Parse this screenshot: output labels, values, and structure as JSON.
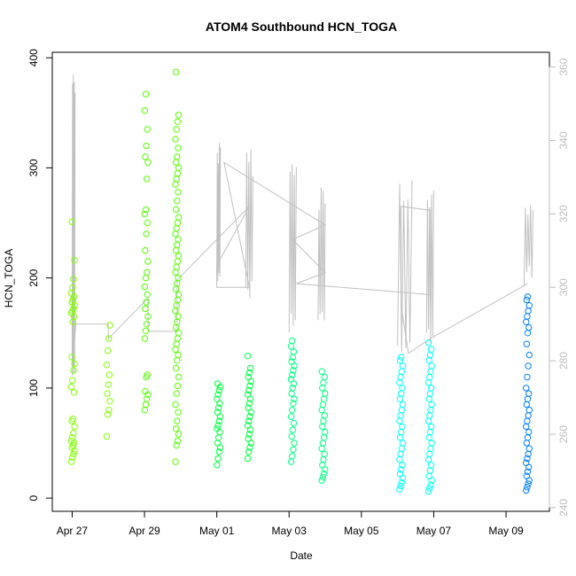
{
  "chart_data": {
    "type": "scatter",
    "title": "ATOM4 Southbound HCN_TOGA",
    "xlabel": "Date",
    "ylabel": "HCN_TOGA",
    "x_ticks": [
      "Apr 27",
      "Apr 29",
      "May 01",
      "May 03",
      "May 05",
      "May 07",
      "May 09"
    ],
    "y_ticks": [
      "0",
      "100",
      "200",
      "300",
      "400"
    ],
    "y2_ticks": [
      "240",
      "260",
      "280",
      "300",
      "320",
      "340",
      "360"
    ],
    "xlim": [
      "2018-04-26.45",
      "2018-05-10.2"
    ],
    "ylim": [
      -12,
      405
    ],
    "y2lim": [
      239,
      364
    ],
    "secondary_axis_color": "#bdbdbd",
    "line_color": "#c0c0c0",
    "grid": false,
    "series": [
      {
        "color": "#80ff00",
        "clusters": [
          {
            "date": "2018-04-27.02",
            "values": [
              33,
              37,
              40,
              43,
              46,
              48,
              50,
              52,
              55,
              59,
              65,
              70,
              72,
              96,
              101,
              107,
              116,
              122,
              128,
              160,
              165,
              168,
              170,
              172,
              175,
              178,
              180,
              183,
              186,
              191,
              199,
              216,
              251
            ]
          },
          {
            "date": "2018-04-28.0",
            "values": [
              56,
              76,
              80,
              88,
              95,
              103,
              112,
              121,
              134,
              145,
              157
            ]
          }
        ]
      },
      {
        "color": "#55ff00",
        "clusters": [
          {
            "date": "2018-04-29.05",
            "values": [
              80,
              85,
              90,
              94,
              97,
              110,
              112,
              145,
              152,
              158,
              165,
              172,
              178,
              185,
              192,
              200,
              205,
              215,
              225,
              240,
              250,
              258,
              262,
              290,
              305,
              310,
              320,
              335,
              352,
              367
            ]
          },
          {
            "date": "2018-04-29.9",
            "values": [
              33,
              48,
              52,
              58,
              63,
              70,
              78,
              85,
              95,
              102,
              110,
              118,
              125,
              130,
              135,
              140,
              145,
              150,
              155,
              160,
              165,
              170,
              175,
              180,
              185,
              190,
              195,
              200,
              205,
              210,
              215,
              220,
              225,
              230,
              235,
              240,
              245,
              250,
              255,
              262,
              270,
              278,
              285,
              290,
              295,
              300,
              305,
              310,
              318,
              326,
              335,
              342,
              348,
              387
            ]
          }
        ]
      },
      {
        "color": "#00ff40",
        "clusters": [
          {
            "date": "2018-05-01.05",
            "values": [
              30,
              36,
              42,
              46,
              50,
              55,
              60,
              63,
              66,
              70,
              74,
              78,
              82,
              86,
              90,
              94,
              98,
              101,
              104
            ]
          },
          {
            "date": "2018-05-01.9",
            "values": [
              36,
              42,
              46,
              50,
              54,
              58,
              62,
              66,
              70,
              74,
              78,
              82,
              86,
              90,
              94,
              98,
              102,
              106,
              110,
              114,
              118,
              129
            ]
          }
        ]
      },
      {
        "color": "#00ff80",
        "clusters": [
          {
            "date": "2018-05-03.1",
            "values": [
              33,
              38,
              44,
              50,
              56,
              62,
              68,
              74,
              80,
              86,
              90,
              95,
              100,
              104,
              108,
              112,
              116,
              120,
              124,
              128,
              133,
              138,
              143
            ]
          },
          {
            "date": "2018-05-03.95",
            "values": [
              16,
              19,
              22,
              26,
              30,
              35,
              40,
              45,
              50,
              55,
              60,
              65,
              70,
              75,
              80,
              85,
              90,
              95,
              100,
              105,
              110,
              115
            ]
          }
        ]
      },
      {
        "color": "#00ffff",
        "clusters": [
          {
            "date": "2018-05-06.1",
            "values": [
              8,
              11,
              14,
              18,
              22,
              26,
              30,
              35,
              40,
              45,
              50,
              55,
              60,
              65,
              70,
              75,
              80,
              85,
              90,
              95,
              100,
              105,
              110,
              115,
              120,
              125,
              128
            ]
          },
          {
            "date": "2018-05-06.9",
            "values": [
              6,
              9,
              12,
              16,
              20,
              25,
              30,
              35,
              40,
              45,
              50,
              55,
              60,
              65,
              70,
              75,
              80,
              85,
              90,
              95,
              100,
              105,
              110,
              115,
              120,
              125,
              130,
              135,
              141
            ]
          }
        ]
      },
      {
        "color": "#0080ff",
        "clusters": [
          {
            "date": "2018-05-09.6",
            "values": [
              7,
              10,
              13,
              16,
              20,
              24,
              28,
              32,
              36,
              40,
              45,
              50,
              55,
              60,
              65,
              70,
              75,
              80,
              85,
              90,
              95,
              100,
              110,
              120,
              130,
              140,
              150,
              155,
              160,
              165,
              170,
              175,
              180,
              183
            ]
          }
        ]
      }
    ],
    "secondary_line": {
      "axis": "right",
      "segments": [
        {
          "start": "2018-04-27.0",
          "end": "2018-04-27.08",
          "low": 276,
          "high": 360
        },
        {
          "start": "2018-05-01.0",
          "end": "2018-05-01.1",
          "low": 300,
          "high": 340
        },
        {
          "start": "2018-05-01.8",
          "end": "2018-05-02.0",
          "low": 296,
          "high": 338
        },
        {
          "start": "2018-05-03.0",
          "end": "2018-05-03.2",
          "low": 287,
          "high": 335
        },
        {
          "start": "2018-05-03.8",
          "end": "2018-05-04.0",
          "low": 290,
          "high": 329
        },
        {
          "start": "2018-05-06.0",
          "end": "2018-05-06.4",
          "low": 282,
          "high": 331
        },
        {
          "start": "2018-05-06.8",
          "end": "2018-05-07.0",
          "low": 284,
          "high": 327
        },
        {
          "start": "2018-05-09.5",
          "end": "2018-05-09.75",
          "low": 300,
          "high": 325
        }
      ],
      "connector": [
        [
          "2018-04-27.0",
          276
        ],
        [
          "2018-04-27.1",
          290
        ],
        [
          "2018-04-28.0",
          290
        ],
        [
          "2018-04-28.0",
          286
        ],
        [
          "2018-04-29.1",
          297
        ],
        [
          "2018-04-29.1",
          288
        ],
        [
          "2018-04-29.9",
          288
        ],
        [
          "2018-04-29.9",
          302
        ],
        [
          "2018-05-01.9",
          322
        ],
        [
          "2018-05-01.0",
          306
        ],
        [
          "2018-05-01.0",
          300
        ],
        [
          "2018-05-01.9",
          300
        ],
        [
          "2018-05-01.2",
          334
        ],
        [
          "2018-05-04.0",
          317
        ],
        [
          "2018-05-03.1",
          313
        ],
        [
          "2018-05-04.0",
          304
        ],
        [
          "2018-05-03.2",
          301
        ],
        [
          "2018-05-06.9",
          298
        ],
        [
          "2018-05-06.9",
          321
        ],
        [
          "2018-05-06.1",
          322
        ],
        [
          "2018-05-06.1",
          295
        ],
        [
          "2018-05-06.3",
          282
        ],
        [
          "2018-05-06.9",
          286
        ],
        [
          "2018-05-09.6",
          301
        ]
      ]
    }
  }
}
